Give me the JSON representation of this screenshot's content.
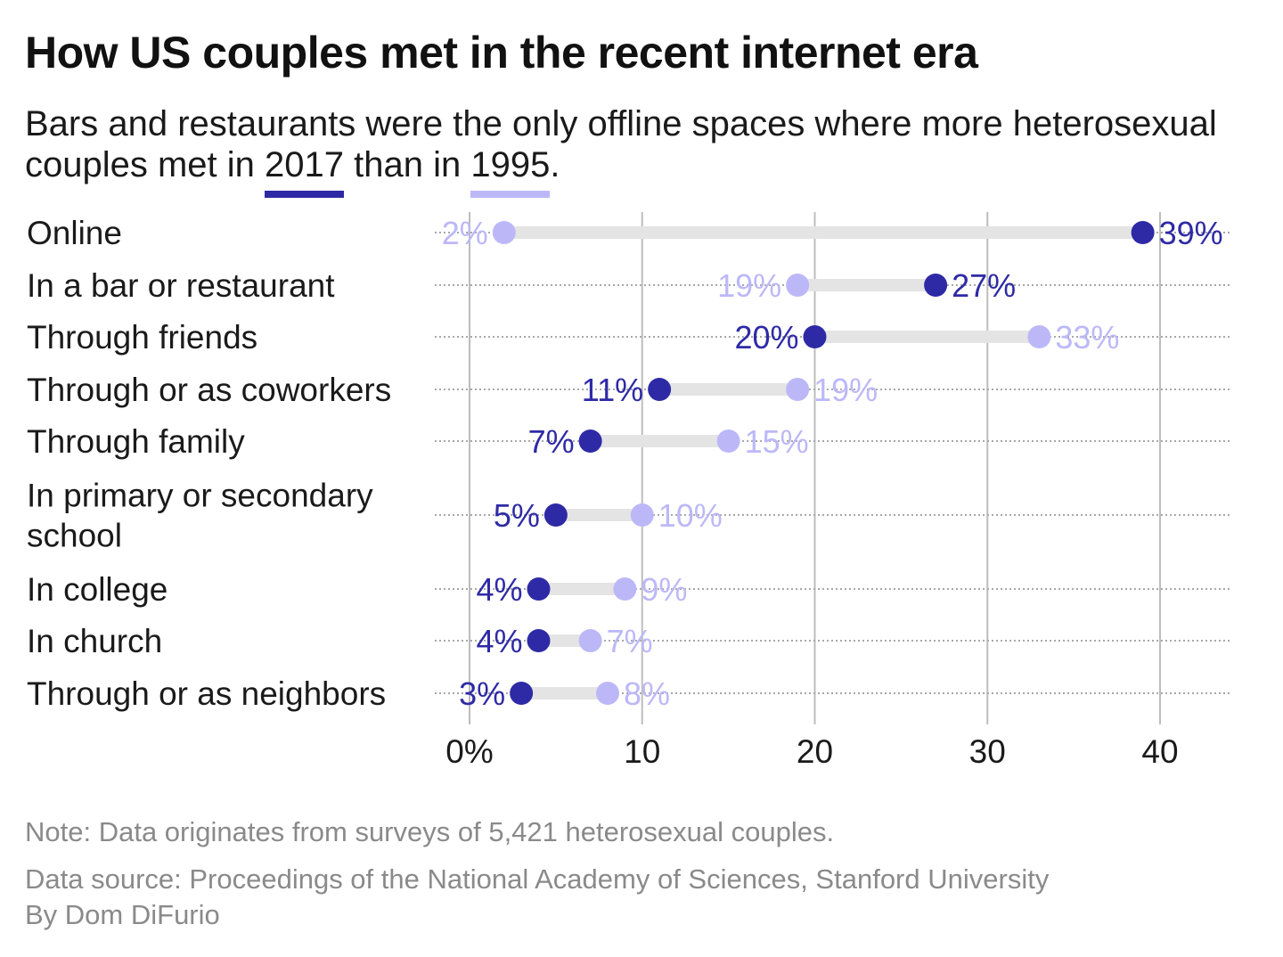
{
  "title": "How US couples met in the recent internet era",
  "subtitle": {
    "before": "Bars and restaurants were the only offline spaces where more heterosexual couples met in ",
    "year_a": "2017",
    "middle": " than in ",
    "year_b": "1995",
    "after": "."
  },
  "colors": {
    "y2017": "#2e2aa6",
    "y1995": "#bcb8f8",
    "track": "#e4e4e4",
    "grid": "#bdbdbd",
    "dotted": "#a8a8a8"
  },
  "chart_data": {
    "type": "dumbbell",
    "categories": [
      "Online",
      "In a bar or restaurant",
      "Through friends",
      "Through or as coworkers",
      "Through family",
      "In primary or secondary school",
      "In college",
      "In church",
      "Through or as neighbors"
    ],
    "category_lines": [
      [
        "Online"
      ],
      [
        "In a bar or restaurant"
      ],
      [
        "Through friends"
      ],
      [
        "Through or as coworkers"
      ],
      [
        "Through family"
      ],
      [
        "In primary or secondary",
        "school"
      ],
      [
        "In college"
      ],
      [
        "In church"
      ],
      [
        "Through or as neighbors"
      ]
    ],
    "series": [
      {
        "name": "2017",
        "values": [
          39,
          27,
          20,
          11,
          7,
          5,
          4,
          4,
          3
        ]
      },
      {
        "name": "1995",
        "values": [
          2,
          19,
          33,
          19,
          15,
          10,
          9,
          7,
          8
        ]
      }
    ],
    "value_labels": {
      "2017": [
        "39%",
        "27%",
        "20%",
        "11%",
        "7%",
        "5%",
        "4%",
        "4%",
        "3%"
      ],
      "1995": [
        "2%",
        "19%",
        "33%",
        "19%",
        "15%",
        "10%",
        "9%",
        "7%",
        "8%"
      ]
    },
    "xlim": [
      0,
      40
    ],
    "xticks": [
      0,
      10,
      20,
      30,
      40
    ],
    "xtick_labels": [
      "0%",
      "10",
      "20",
      "30",
      "40"
    ],
    "grid": true
  },
  "footer": {
    "note": "Note: Data originates from surveys of 5,421 heterosexual couples.",
    "source": "Data source: Proceedings of the National Academy of Sciences, Stanford University",
    "byline": "By Dom DiFurio"
  }
}
